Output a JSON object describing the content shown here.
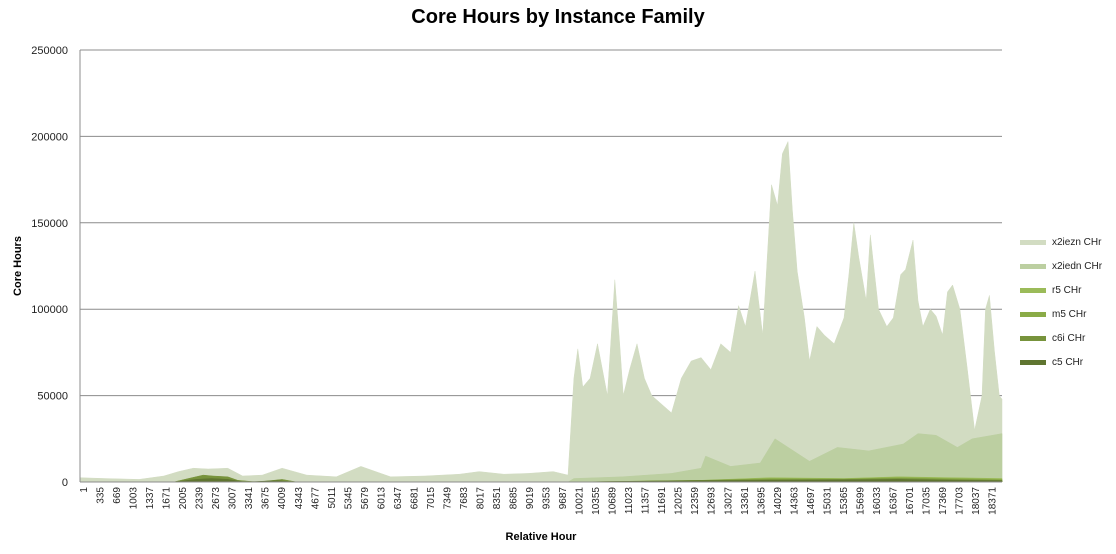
{
  "chart_data": {
    "type": "area",
    "title": "Core Hours by Instance Family",
    "xlabel": "Relative Hour",
    "ylabel": "Core Hours",
    "ylim": [
      0,
      250000
    ],
    "xlim": [
      1,
      18705
    ],
    "yticks": [
      0,
      50000,
      100000,
      150000,
      200000,
      250000
    ],
    "xtick_labels": [
      "1",
      "335",
      "669",
      "1003",
      "1337",
      "1671",
      "2005",
      "2339",
      "2673",
      "3007",
      "3341",
      "3675",
      "4009",
      "4343",
      "4677",
      "5011",
      "5345",
      "5679",
      "6013",
      "6347",
      "6681",
      "7015",
      "7349",
      "7683",
      "8017",
      "8351",
      "8685",
      "9019",
      "9353",
      "9687",
      "10021",
      "10355",
      "10689",
      "11023",
      "11357",
      "11691",
      "12025",
      "12359",
      "12693",
      "13027",
      "13361",
      "13695",
      "14029",
      "14363",
      "14697",
      "15031",
      "15365",
      "15699",
      "16033",
      "16367",
      "16701",
      "17035",
      "17369",
      "17703",
      "18037",
      "18371"
    ],
    "grid": true,
    "legend_position": "right",
    "series": [
      {
        "name": "x2iezn CHr",
        "color": "#d2dcc2",
        "x": [
          1,
          500,
          1200,
          1700,
          2000,
          2300,
          2600,
          3000,
          3300,
          3700,
          4100,
          4600,
          5200,
          5700,
          6300,
          7000,
          7350,
          7700,
          8100,
          8600,
          9100,
          9600,
          9900,
          10021,
          10100,
          10200,
          10350,
          10500,
          10700,
          10850,
          10950,
          11023,
          11150,
          11300,
          11450,
          11600,
          11800,
          12000,
          12200,
          12400,
          12600,
          12800,
          13000,
          13200,
          13361,
          13500,
          13695,
          13850,
          14029,
          14150,
          14250,
          14363,
          14450,
          14550,
          14697,
          14800,
          14950,
          15100,
          15300,
          15500,
          15600,
          15699,
          15800,
          15950,
          16033,
          16200,
          16367,
          16500,
          16650,
          16750,
          16900,
          17000,
          17100,
          17250,
          17369,
          17500,
          17600,
          17703,
          17850,
          18000,
          18150,
          18300,
          18371,
          18450,
          18550,
          18650,
          18705
        ],
        "values": [
          2500,
          2000,
          1500,
          3500,
          6000,
          8000,
          7500,
          8000,
          3500,
          4000,
          8000,
          4000,
          3000,
          9000,
          3000,
          3500,
          4000,
          4500,
          6000,
          4500,
          5000,
          6000,
          4000,
          60000,
          77000,
          55000,
          60000,
          80000,
          50000,
          117000,
          80000,
          50000,
          65000,
          80000,
          60000,
          50000,
          45000,
          40000,
          60000,
          70000,
          72000,
          65000,
          80000,
          75000,
          102000,
          90000,
          122000,
          85000,
          172000,
          160000,
          190000,
          197000,
          158000,
          122000,
          95000,
          70000,
          90000,
          85000,
          80000,
          95000,
          120000,
          150000,
          130000,
          105000,
          143000,
          100000,
          90000,
          95000,
          120000,
          123000,
          140000,
          105000,
          90000,
          100000,
          96000,
          85000,
          110000,
          114000,
          100000,
          66000,
          30000,
          50000,
          100000,
          108000,
          76000,
          50000,
          48000
        ]
      },
      {
        "name": "x2iedn CHr",
        "color": "#bccfa1",
        "x": [
          1,
          9900,
          10021,
          11000,
          12000,
          12600,
          12693,
          13200,
          13800,
          14100,
          14800,
          15365,
          16000,
          16700,
          17000,
          17369,
          17800,
          18100,
          18705
        ],
        "values": [
          0,
          0,
          2000,
          3000,
          5000,
          8000,
          15000,
          9000,
          11000,
          25000,
          12000,
          20000,
          18000,
          22000,
          28000,
          27000,
          20000,
          25000,
          28000
        ]
      },
      {
        "name": "r5 CHr",
        "color": "#9bbb59",
        "x": [
          1,
          10021,
          12600,
          14000,
          15500,
          16600,
          17700,
          18705
        ],
        "values": [
          0,
          0,
          1000,
          2500,
          2000,
          3000,
          2500,
          2000
        ]
      },
      {
        "name": "m5 CHr",
        "color": "#8aab47",
        "x": [
          1,
          10021,
          12600,
          14000,
          15500,
          16600,
          17700,
          18705
        ],
        "values": [
          0,
          0,
          800,
          2000,
          1800,
          2500,
          2000,
          1500
        ]
      },
      {
        "name": "c6i CHr",
        "color": "#77933c",
        "x": [
          1,
          1900,
          2200,
          2500,
          2700,
          3000,
          3200,
          3600,
          4100,
          4400,
          10021,
          12600,
          14000,
          15500,
          16600,
          17700,
          18705
        ],
        "values": [
          0,
          0,
          2000,
          4000,
          3500,
          3000,
          1000,
          0,
          1500,
          0,
          0,
          1000,
          1500,
          1500,
          2000,
          1500,
          1000
        ]
      },
      {
        "name": "c5 CHr",
        "color": "#5f7530",
        "x": [
          1,
          1900,
          2339,
          2673,
          3007,
          3341,
          4009,
          4343,
          10021,
          12600,
          14000,
          15500,
          16600,
          17700,
          18705
        ],
        "values": [
          0,
          0,
          1500,
          2000,
          1500,
          0,
          800,
          0,
          0,
          800,
          1000,
          1200,
          1500,
          1000,
          800
        ]
      }
    ]
  }
}
